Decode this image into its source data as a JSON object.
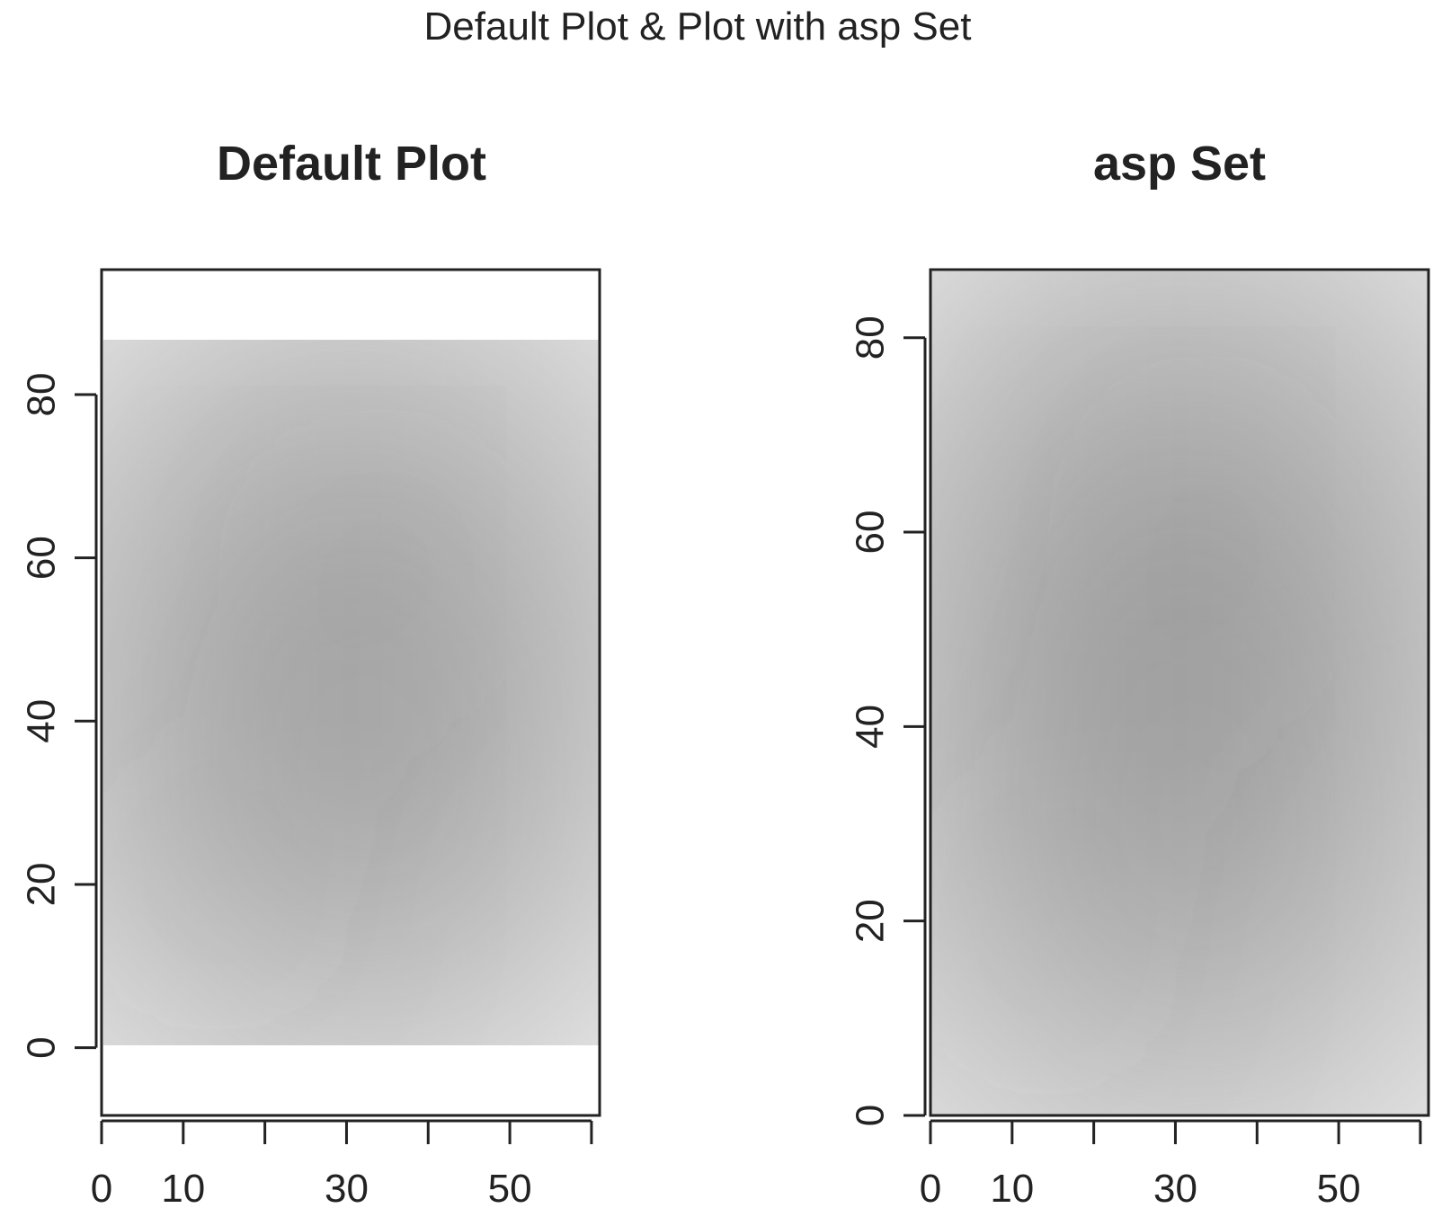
{
  "figure": {
    "title": "Default Plot & Plot with asp Set"
  },
  "chart_data": [
    {
      "type": "heatmap",
      "title": "Default Plot",
      "xlabel": "",
      "ylabel": "",
      "xlim": [
        0,
        61
      ],
      "ylim": [
        -8.3,
        95.3
      ],
      "x_ticks": [
        0,
        10,
        20,
        30,
        40,
        50,
        60
      ],
      "x_tick_labels": [
        "0",
        "10",
        "",
        "30",
        "",
        "50",
        ""
      ],
      "y_ticks": [
        0,
        20,
        40,
        60,
        80
      ],
      "y_tick_labels": [
        "0",
        "20",
        "40",
        "60",
        "80"
      ],
      "image_extent": {
        "x": [
          0,
          61
        ],
        "y": [
          0,
          87
        ]
      },
      "colormap": "grayscale",
      "colors": {
        "background": "#9a9a9a",
        "dark": "#2d2d2d",
        "light": "#a8a8a8"
      }
    },
    {
      "type": "heatmap",
      "title": "asp Set",
      "xlabel": "",
      "ylabel": "",
      "xlim": [
        0,
        61
      ],
      "ylim": [
        0,
        87
      ],
      "x_ticks": [
        0,
        10,
        20,
        30,
        40,
        50,
        60
      ],
      "x_tick_labels": [
        "0",
        "10",
        "",
        "30",
        "",
        "50",
        ""
      ],
      "y_ticks": [
        0,
        20,
        40,
        60,
        80
      ],
      "y_tick_labels": [
        "0",
        "20",
        "40",
        "60",
        "80"
      ],
      "image_extent": {
        "x": [
          0,
          61
        ],
        "y": [
          0,
          87
        ]
      },
      "colormap": "grayscale",
      "colors": {
        "background": "#9a9a9a",
        "dark": "#2d2d2d",
        "light": "#a8a8a8"
      }
    }
  ]
}
